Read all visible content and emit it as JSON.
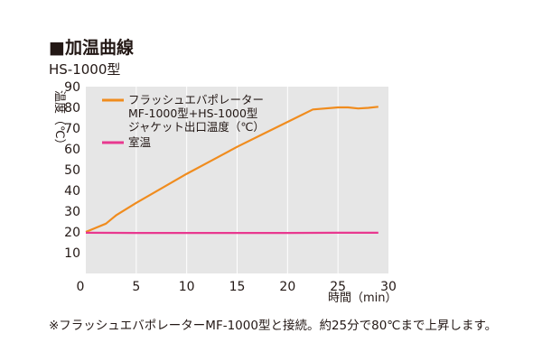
{
  "header": {
    "title": "■加温曲線",
    "subtitle": "HS-1000型"
  },
  "footnote": "※フラッシュエバポレーターMF-1000型と接続。約25分で80℃まで上昇します。",
  "chart_data": {
    "type": "line",
    "title": "■加温曲線",
    "subtitle": "HS-1000型",
    "xlabel": "時間（min）",
    "ylabel": "温度（℃）",
    "xlim": [
      0,
      30
    ],
    "ylim": [
      0,
      90
    ],
    "xticks": [
      0,
      5,
      10,
      15,
      20,
      25,
      30
    ],
    "yticks": [
      0,
      10,
      20,
      30,
      40,
      50,
      60,
      70,
      80,
      90
    ],
    "grid": "vertical",
    "legend_position": "top-left",
    "series": [
      {
        "name": "フラッシュエバポレーター MF-1000型+HS-1000型 ジャケット出口温度（℃）",
        "legend_lines": [
          "フラッシュエバポレーター",
          "MF-1000型+HS-1000型",
          "ジャケット出口温度（℃）"
        ],
        "color": "#f08c1e",
        "x": [
          0,
          1,
          2,
          3,
          5,
          7.5,
          10,
          12.5,
          15,
          17.5,
          20,
          22.5,
          25,
          26,
          27,
          28,
          29
        ],
        "y": [
          20,
          22,
          24,
          28,
          34,
          41,
          48,
          54.5,
          61,
          67,
          73,
          79,
          80,
          80,
          79.5,
          79.8,
          80.3
        ]
      },
      {
        "name": "室温",
        "legend_lines": [
          "室温"
        ],
        "color": "#e8388f",
        "x": [
          0,
          5,
          10,
          15,
          20,
          25,
          29
        ],
        "y": [
          19.6,
          19.5,
          19.5,
          19.5,
          19.5,
          19.6,
          19.6
        ]
      }
    ]
  }
}
